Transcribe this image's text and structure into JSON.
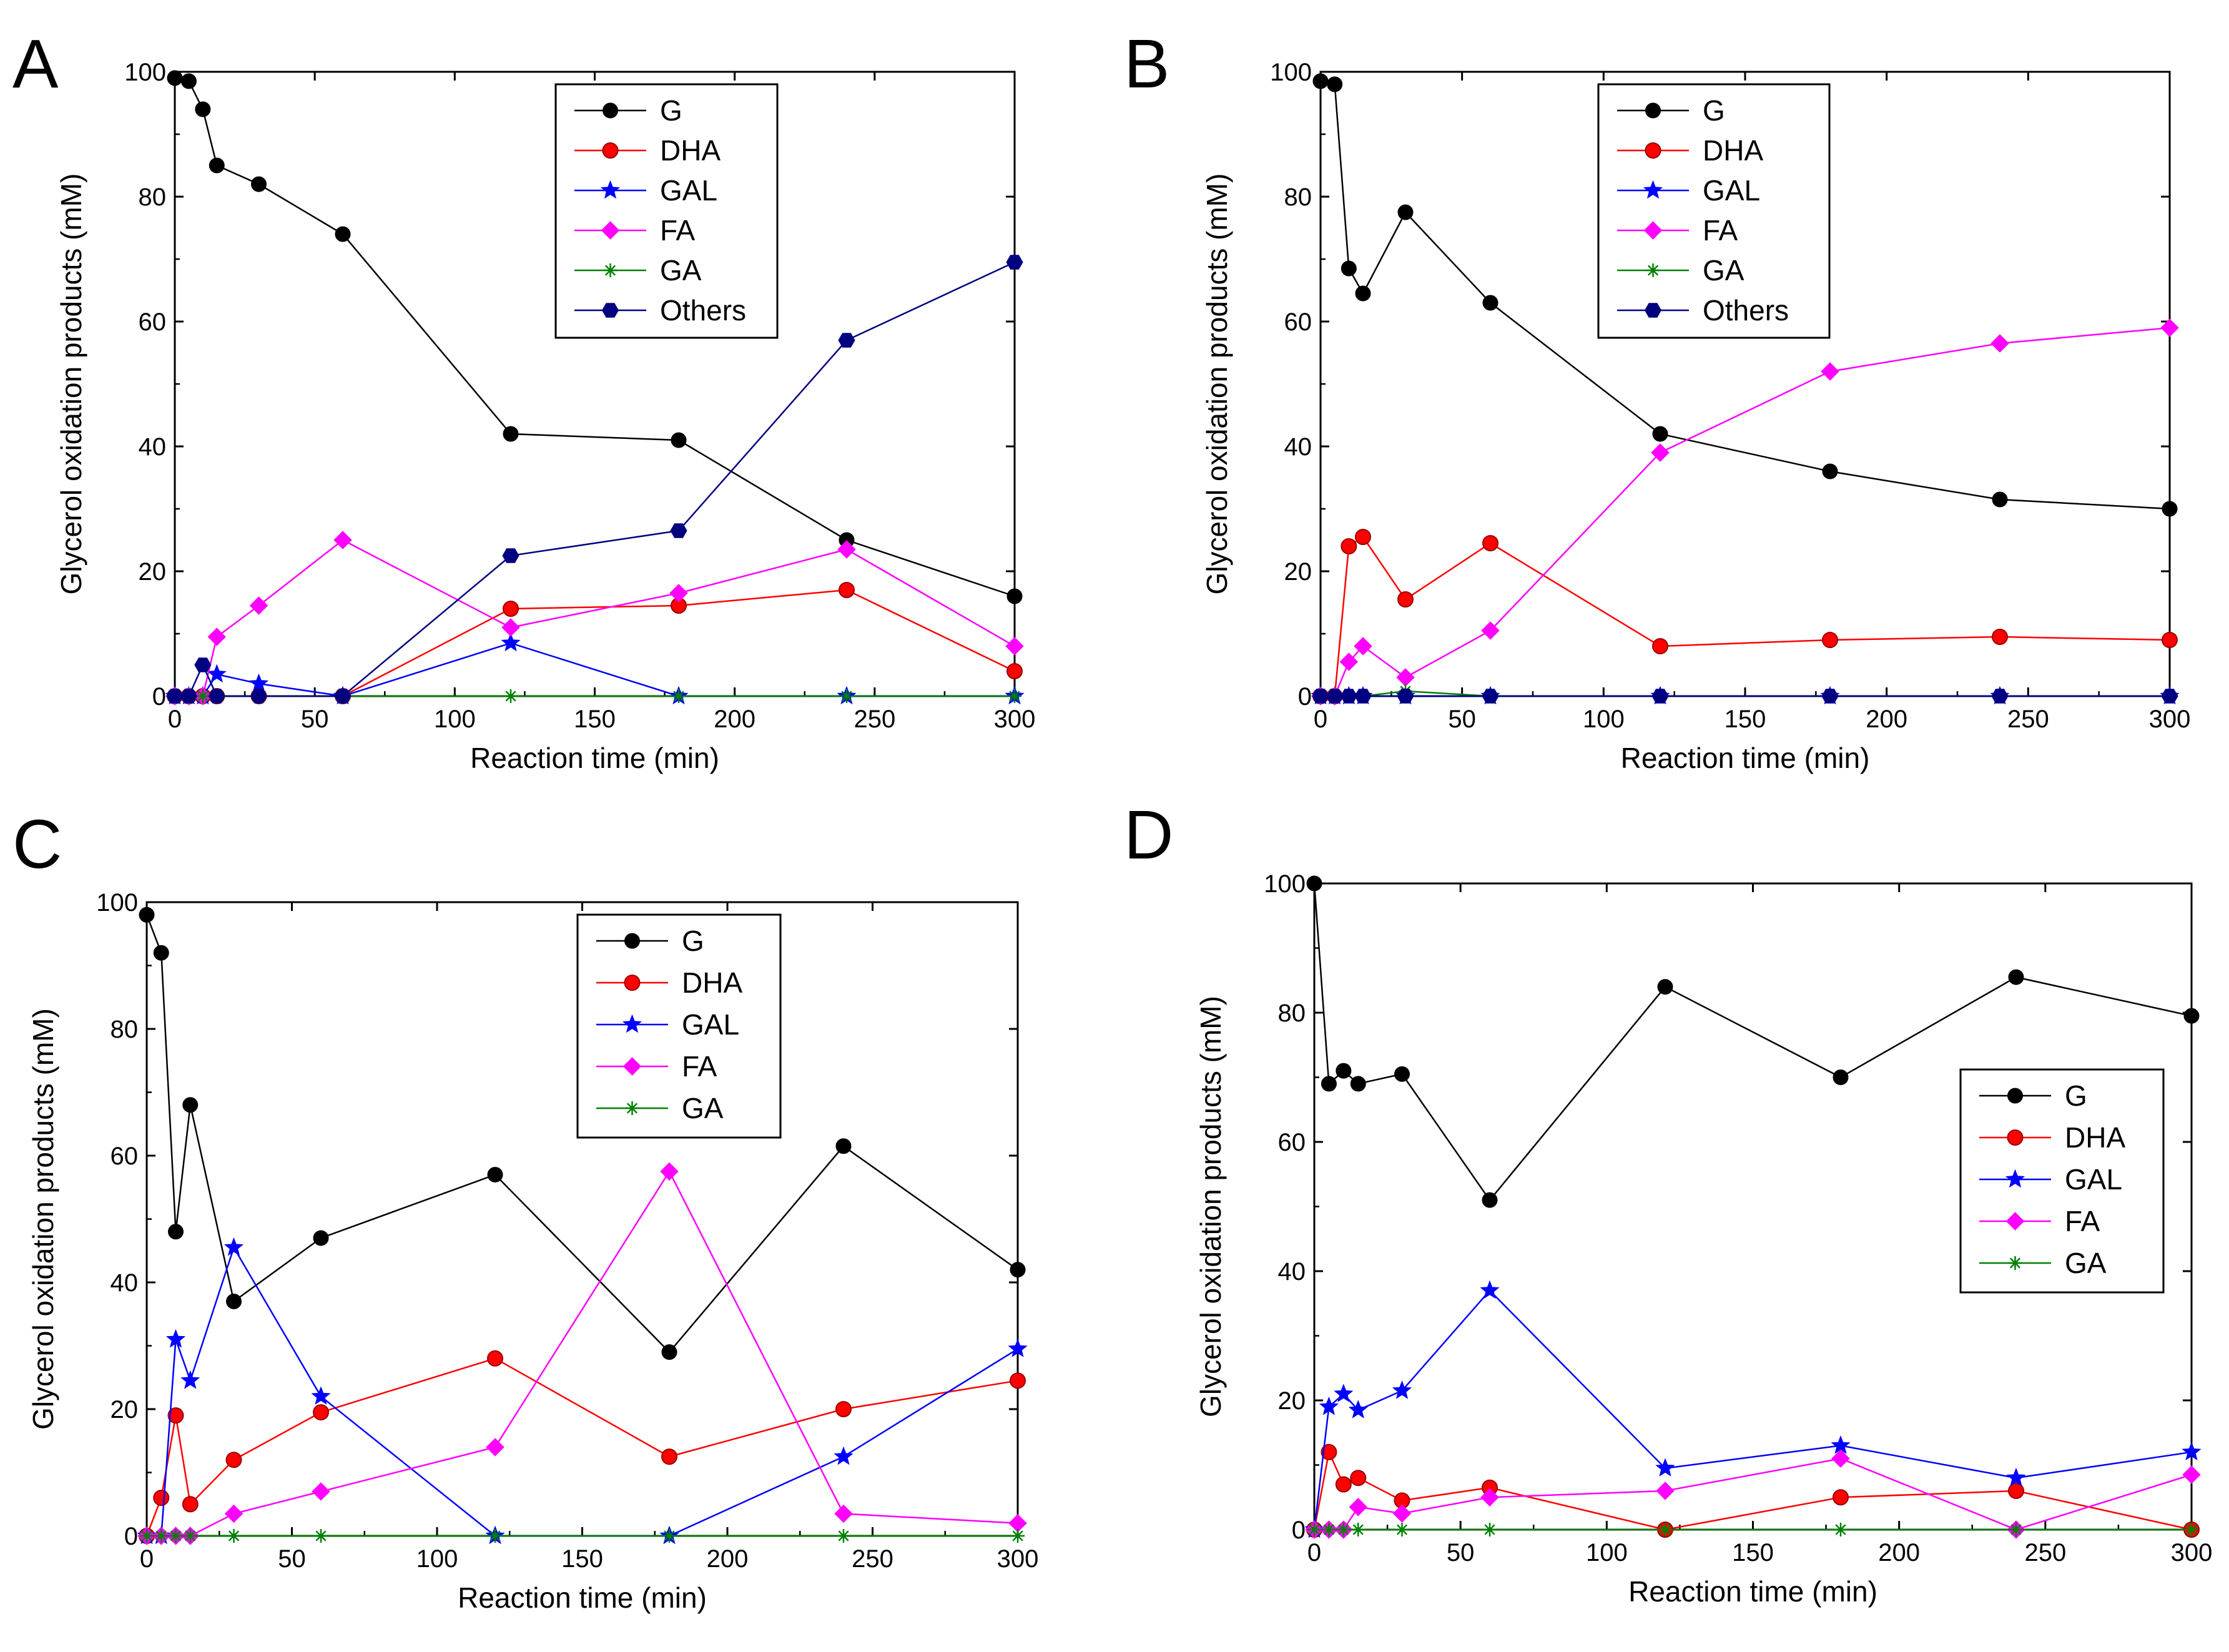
{
  "colors": {
    "G": "#000000",
    "DHA": "#ff0000",
    "GAL": "#0000ff",
    "FA": "#ff00ff",
    "GA": "#008000",
    "Others": "#000080"
  },
  "chart_data": [
    {
      "type": "line",
      "label": "A",
      "title": "",
      "xlabel": "Reaction time (min)",
      "ylabel": "Glycerol oxidation products (mM)",
      "xlim": [
        0,
        300
      ],
      "ylim": [
        0,
        100
      ],
      "xticks": [
        0,
        50,
        100,
        150,
        200,
        250,
        300
      ],
      "yticks": [
        0,
        20,
        40,
        60,
        80,
        100
      ],
      "x": [
        0,
        5,
        10,
        15,
        30,
        60,
        120,
        180,
        240,
        300
      ],
      "legend_position": "top-right",
      "series": [
        {
          "name": "G",
          "values": [
            99,
            98.5,
            94,
            85,
            82,
            74,
            42,
            41,
            25,
            16
          ]
        },
        {
          "name": "DHA",
          "values": [
            0,
            0,
            0,
            0,
            0,
            0,
            14,
            14.5,
            17,
            4
          ]
        },
        {
          "name": "GAL",
          "values": [
            0,
            0,
            0,
            3.5,
            2,
            0,
            8.5,
            0,
            0,
            0
          ]
        },
        {
          "name": "FA",
          "values": [
            0,
            0,
            0,
            9.5,
            14.5,
            25,
            11,
            16.5,
            23.5,
            8
          ]
        },
        {
          "name": "GA",
          "values": [
            0,
            0,
            0,
            0,
            0,
            0,
            0,
            0,
            0,
            0
          ]
        },
        {
          "name": "Others",
          "values": [
            0,
            0,
            5,
            0,
            0,
            0,
            22.5,
            26.5,
            57,
            69.5
          ]
        }
      ]
    },
    {
      "type": "line",
      "label": "B",
      "title": "",
      "xlabel": "Reaction time (min)",
      "ylabel": "Glycerol oxidation products (mM)",
      "xlim": [
        0,
        300
      ],
      "ylim": [
        0,
        100
      ],
      "xticks": [
        0,
        50,
        100,
        150,
        200,
        250,
        300
      ],
      "yticks": [
        0,
        20,
        40,
        60,
        80,
        100
      ],
      "x": [
        0,
        5,
        10,
        15,
        30,
        60,
        120,
        180,
        240,
        300
      ],
      "legend_position": "top-right",
      "series": [
        {
          "name": "G",
          "values": [
            98.5,
            98,
            68.5,
            64.5,
            77.5,
            63,
            42,
            36,
            31.5,
            30
          ]
        },
        {
          "name": "DHA",
          "values": [
            0,
            0,
            24,
            25.5,
            15.5,
            24.5,
            8,
            9,
            9.5,
            9
          ]
        },
        {
          "name": "GAL",
          "values": [
            0,
            0,
            0,
            0,
            0,
            0,
            0,
            0,
            0,
            0
          ]
        },
        {
          "name": "FA",
          "values": [
            0,
            0,
            5.5,
            8,
            3,
            10.5,
            39,
            52,
            56.5,
            59
          ]
        },
        {
          "name": "GA",
          "values": [
            0,
            0,
            0,
            0,
            0.8,
            0,
            0,
            0,
            0,
            0
          ]
        },
        {
          "name": "Others",
          "values": [
            0,
            0,
            0,
            0,
            0,
            0,
            0,
            0,
            0,
            0
          ]
        }
      ]
    },
    {
      "type": "line",
      "label": "C",
      "title": "",
      "xlabel": "Reaction time (min)",
      "ylabel": "Glycerol oxidation products (mM)",
      "xlim": [
        0,
        300
      ],
      "ylim": [
        0,
        100
      ],
      "xticks": [
        0,
        50,
        100,
        150,
        200,
        250,
        300
      ],
      "yticks": [
        0,
        20,
        40,
        60,
        80,
        100
      ],
      "x": [
        0,
        5,
        10,
        15,
        30,
        60,
        120,
        180,
        240,
        300
      ],
      "legend_position": "top-right",
      "series": [
        {
          "name": "G",
          "values": [
            98,
            92,
            48,
            68,
            37,
            47,
            57,
            29,
            61.5,
            42
          ]
        },
        {
          "name": "DHA",
          "values": [
            0,
            6,
            19,
            5,
            12,
            19.5,
            28,
            12.5,
            20,
            24.5
          ]
        },
        {
          "name": "GAL",
          "values": [
            0,
            0,
            31,
            24.5,
            45.5,
            22,
            0,
            0,
            12.5,
            29.5
          ]
        },
        {
          "name": "FA",
          "values": [
            0,
            0,
            0,
            0,
            3.5,
            7,
            14,
            57.5,
            3.5,
            2
          ]
        },
        {
          "name": "GA",
          "values": [
            0,
            0,
            0,
            0,
            0,
            0,
            0,
            0,
            0,
            0
          ]
        }
      ]
    },
    {
      "type": "line",
      "label": "D",
      "title": "",
      "xlabel": "Reaction time (min)",
      "ylabel": "Glycerol oxidation products (mM)",
      "xlim": [
        0,
        300
      ],
      "ylim": [
        0,
        100
      ],
      "xticks": [
        0,
        50,
        100,
        150,
        200,
        250,
        300
      ],
      "yticks": [
        0,
        20,
        40,
        60,
        80,
        100
      ],
      "x": [
        0,
        5,
        10,
        15,
        30,
        60,
        120,
        180,
        240,
        300
      ],
      "legend_position": "center-right",
      "series": [
        {
          "name": "G",
          "values": [
            100,
            69,
            71,
            69,
            70.5,
            51,
            84,
            70,
            85.5,
            79.5
          ]
        },
        {
          "name": "DHA",
          "values": [
            0,
            12,
            7,
            8,
            4.5,
            6.5,
            0,
            5,
            6,
            0
          ]
        },
        {
          "name": "GAL",
          "values": [
            0,
            19,
            21,
            18.5,
            21.5,
            37,
            9.5,
            13,
            8,
            12
          ]
        },
        {
          "name": "FA",
          "values": [
            0,
            0,
            0,
            3.5,
            2.5,
            5,
            6,
            11,
            0,
            8.5
          ]
        },
        {
          "name": "GA",
          "values": [
            0,
            0,
            0,
            0,
            0,
            0,
            0,
            0,
            0,
            0
          ]
        }
      ]
    }
  ]
}
